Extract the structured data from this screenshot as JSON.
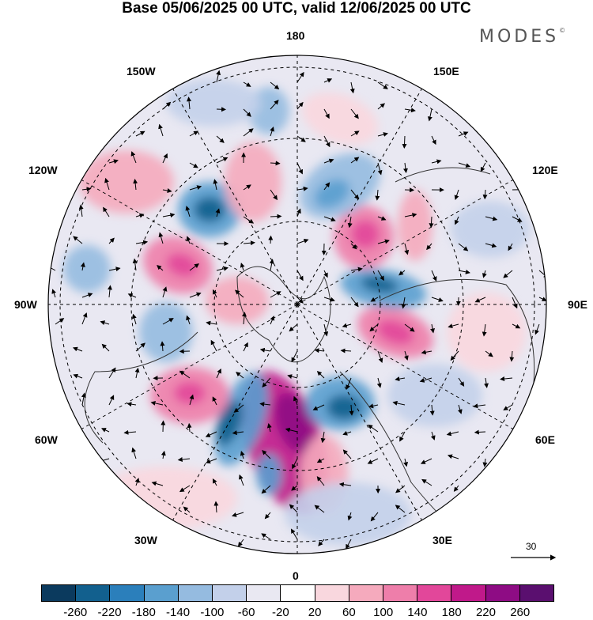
{
  "title": "Base 05/06/2025 00 UTC, valid 12/06/2025 00 UTC",
  "brand": {
    "name": "MODES",
    "mark": "©"
  },
  "map": {
    "projection": "north-polar-stereographic",
    "longitude_labels": {
      "top": "180",
      "bottom": "0",
      "left": "90W",
      "right": "90E",
      "upper_left_1": "150W",
      "upper_left_2": "120W",
      "upper_right_1": "150E",
      "upper_right_2": "120E",
      "lower_left_1": "60W",
      "lower_left_2": "30W",
      "lower_right_1": "60E",
      "lower_right_2": "30E"
    },
    "wind_reference": {
      "value": "30",
      "icon": "arrow-right-icon"
    }
  },
  "colorbar": {
    "colors": [
      "#0b3a5e",
      "#12608e",
      "#2b7fbb",
      "#5a9fcf",
      "#95bbe0",
      "#c3d0ea",
      "#e9e8f2",
      "#ffffff",
      "#f9d7de",
      "#f5aabd",
      "#ee7eaa",
      "#e2479a",
      "#c0198a",
      "#8e0c84",
      "#5a0f6f"
    ],
    "tick_labels": [
      "-260",
      "-220",
      "-180",
      "-140",
      "-100",
      "-60",
      "-20",
      "20",
      "60",
      "100",
      "140",
      "180",
      "220",
      "260"
    ]
  }
}
